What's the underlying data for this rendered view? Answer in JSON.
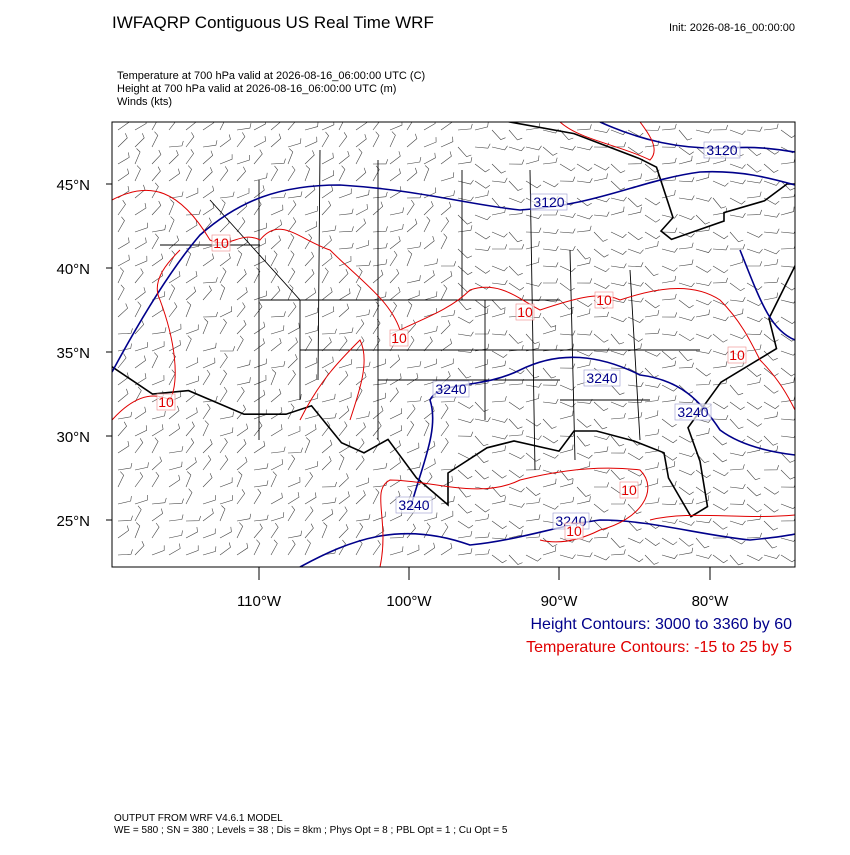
{
  "header": {
    "title": "IWFAQRP Contiguous US Real Time WRF",
    "init": "Init: 2026-08-16_00:00:00"
  },
  "fields": [
    "Temperature at 700 hPa valid at 2026-08-16_06:00:00 UTC   (C)",
    "Height at 700 hPa valid at 2026-08-16_06:00:00 UTC   (m)",
    "Winds   (kts)"
  ],
  "lat_labels": [
    "45°N",
    "40°N",
    "35°N",
    "30°N",
    "25°N"
  ],
  "lon_labels": [
    "110°W",
    "100°W",
    "90°W",
    "80°W"
  ],
  "height_labels": [
    "3120",
    "3120",
    "3240",
    "3240",
    "3240",
    "3240",
    "3240"
  ],
  "temperature_labels": [
    "10",
    "10",
    "10",
    "10",
    "10",
    "10",
    "10",
    "10"
  ],
  "legend": [
    "Height Contours: 3000 to 3360 by 60",
    "Temperature Contours: -15 to 25 by 5"
  ],
  "footer": [
    "OUTPUT FROM WRF V4.6.1 MODEL",
    "WE = 580 ; SN = 380 ; Levels = 38 ; Dis = 8km ; Phys Opt = 8 ; PBL Opt = 1 ; Cu Opt = 5"
  ]
}
